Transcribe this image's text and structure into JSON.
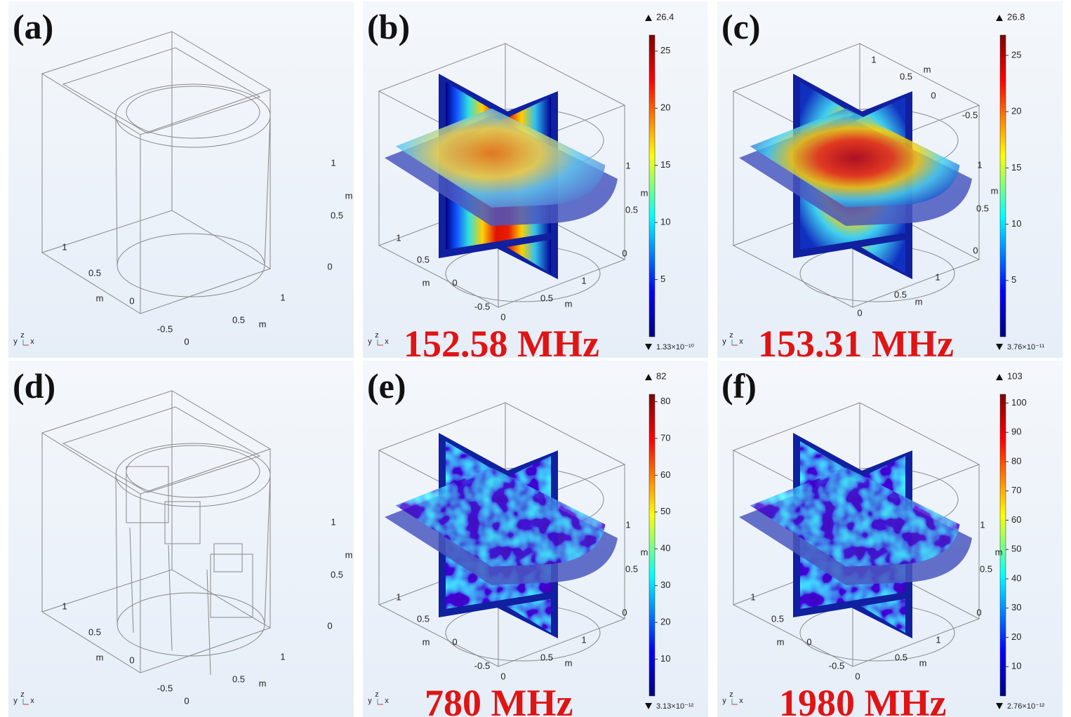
{
  "panels": [
    {
      "label": "(a)",
      "axis_labels": [
        "1",
        "m",
        "0.5",
        "0",
        "1",
        "0.5",
        "m",
        "0",
        "1",
        "0.5",
        "m",
        "-0.5",
        "0"
      ]
    },
    {
      "label": "(b)",
      "frequency": "152.58 MHz",
      "axis_labels": [
        "1",
        "m",
        "0.5",
        "0",
        "1",
        "0.5",
        "m",
        "0",
        "1",
        "0.5",
        "m",
        "-0.5",
        "0"
      ],
      "colorbar": {
        "max": 26.4,
        "min": {
          "value": 1.33e-10,
          "label": "1.33×10⁻¹⁰"
        },
        "ticks": [
          5,
          10,
          15,
          20,
          25
        ]
      }
    },
    {
      "label": "(c)",
      "frequency": "153.31 MHz",
      "axis_labels": [
        "1",
        "m",
        "0.5",
        "0",
        "-0.5",
        "1",
        "m",
        "0.5",
        "0",
        "1",
        "0.5",
        "m",
        "0"
      ],
      "colorbar": {
        "max": 26.8,
        "min": {
          "value": 3.76e-11,
          "label": "3.76×10⁻¹¹"
        },
        "ticks": [
          5,
          10,
          15,
          20,
          25
        ]
      }
    },
    {
      "label": "(d)",
      "axis_labels": [
        "1",
        "m",
        "0.5",
        "0",
        "1",
        "0.5",
        "m",
        "0",
        "1",
        "0.5",
        "m",
        "-0.5",
        "0"
      ]
    },
    {
      "label": "(e)",
      "frequency": "780 MHz",
      "axis_labels": [
        "1",
        "m",
        "0.5",
        "0",
        "1",
        "0.5",
        "m",
        "0",
        "1",
        "0.5",
        "m",
        "-0.5",
        "0"
      ],
      "colorbar": {
        "max": 82,
        "min": {
          "value": 3.13e-12,
          "label": "3.13×10⁻¹²"
        },
        "ticks": [
          10,
          20,
          30,
          40,
          50,
          60,
          70,
          80
        ]
      }
    },
    {
      "label": "(f)",
      "frequency": "1980 MHz",
      "axis_labels": [
        "1",
        "m",
        "0.5",
        "0",
        "1",
        "0.5",
        "m",
        "0",
        "1",
        "0.5",
        "m",
        "-0.5",
        "0"
      ],
      "colorbar": {
        "max": 103,
        "min": {
          "value": 2.76e-12,
          "label": "2.76×10⁻¹²"
        },
        "ticks": [
          10,
          20,
          30,
          40,
          50,
          60,
          70,
          80,
          90,
          100
        ]
      }
    }
  ],
  "triad": [
    "y",
    "z",
    "x"
  ]
}
